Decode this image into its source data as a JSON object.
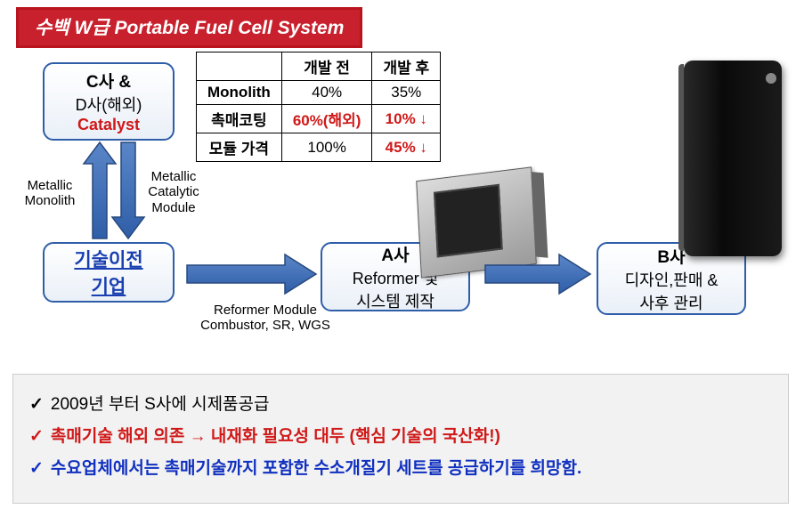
{
  "title": "수백 W급 Portable Fuel Cell System",
  "table": {
    "headers": [
      "",
      "개발 전",
      "개발 후"
    ],
    "rows": [
      {
        "label": "Monolith",
        "before": "40%",
        "after": "35%",
        "before_red": false,
        "after_red": false
      },
      {
        "label": "촉매코팅",
        "before": "60%(해외)",
        "after": "10% ↓",
        "before_red": true,
        "after_red": true
      },
      {
        "label": "모듈 가격",
        "before": "100%",
        "after": "45% ↓",
        "before_red": false,
        "after_red": true
      }
    ]
  },
  "boxes": {
    "cd": {
      "line1": "C사 &",
      "line2": "D사(해외)",
      "line3": "Catalyst"
    },
    "tech": {
      "line1": "기술이전",
      "line2": "기업"
    },
    "a": {
      "line1": "A사",
      "line2": "Reformer 및",
      "line3": "시스템 제작"
    },
    "b": {
      "line1": "B사",
      "line2": "디자인,판매 &",
      "line3": "사후 관리"
    }
  },
  "labels": {
    "metmono": "Metallic\nMonolith",
    "metcat": "Metallic\nCatalytic\nModule",
    "reformer": "Reformer Module\nCombustor, SR, WGS"
  },
  "bullets": [
    {
      "color": "black",
      "check_color": "#000",
      "text": "2009년 부터 S사에 시제품공급"
    },
    {
      "color": "red",
      "check_color": "#d01818",
      "text": "촉매기술 해외 의존 → 내재화 필요성 대두 (핵심 기술의 국산화!)"
    },
    {
      "color": "blue",
      "check_color": "#1030c0",
      "text": "수요업체에서는 촉매기술까지 포함한 수소개질기 세트를 공급하기를 희망함."
    }
  ],
  "colors": {
    "banner_bg": "#c8202c",
    "box_border": "#2f5ea8",
    "arrow_fill": "#3a66b0",
    "arrow_stroke": "#27487d",
    "red": "#d01818",
    "blue": "#1030c0"
  }
}
